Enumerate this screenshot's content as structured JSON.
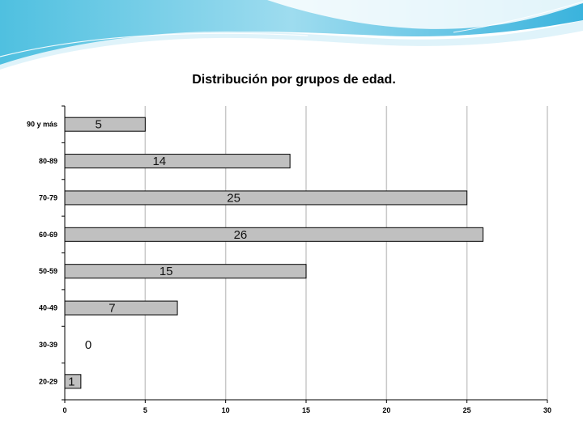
{
  "chart_data": {
    "type": "bar",
    "orientation": "horizontal",
    "title": "Distribución por grupos de edad.",
    "xlabel": "",
    "ylabel": "",
    "categories": [
      "90 y más",
      "80-89",
      "70-79",
      "60-69",
      "50-59",
      "40-49",
      "30-39",
      "20-29"
    ],
    "values": [
      5,
      14,
      25,
      26,
      15,
      7,
      0,
      1
    ],
    "xlim": [
      0,
      30
    ],
    "xticks": [
      "0",
      "5",
      "10",
      "15",
      "20",
      "25",
      "30"
    ],
    "grid": "vertical",
    "legend": "none",
    "bar_color": "#c0c0c0",
    "data_labels": true
  }
}
